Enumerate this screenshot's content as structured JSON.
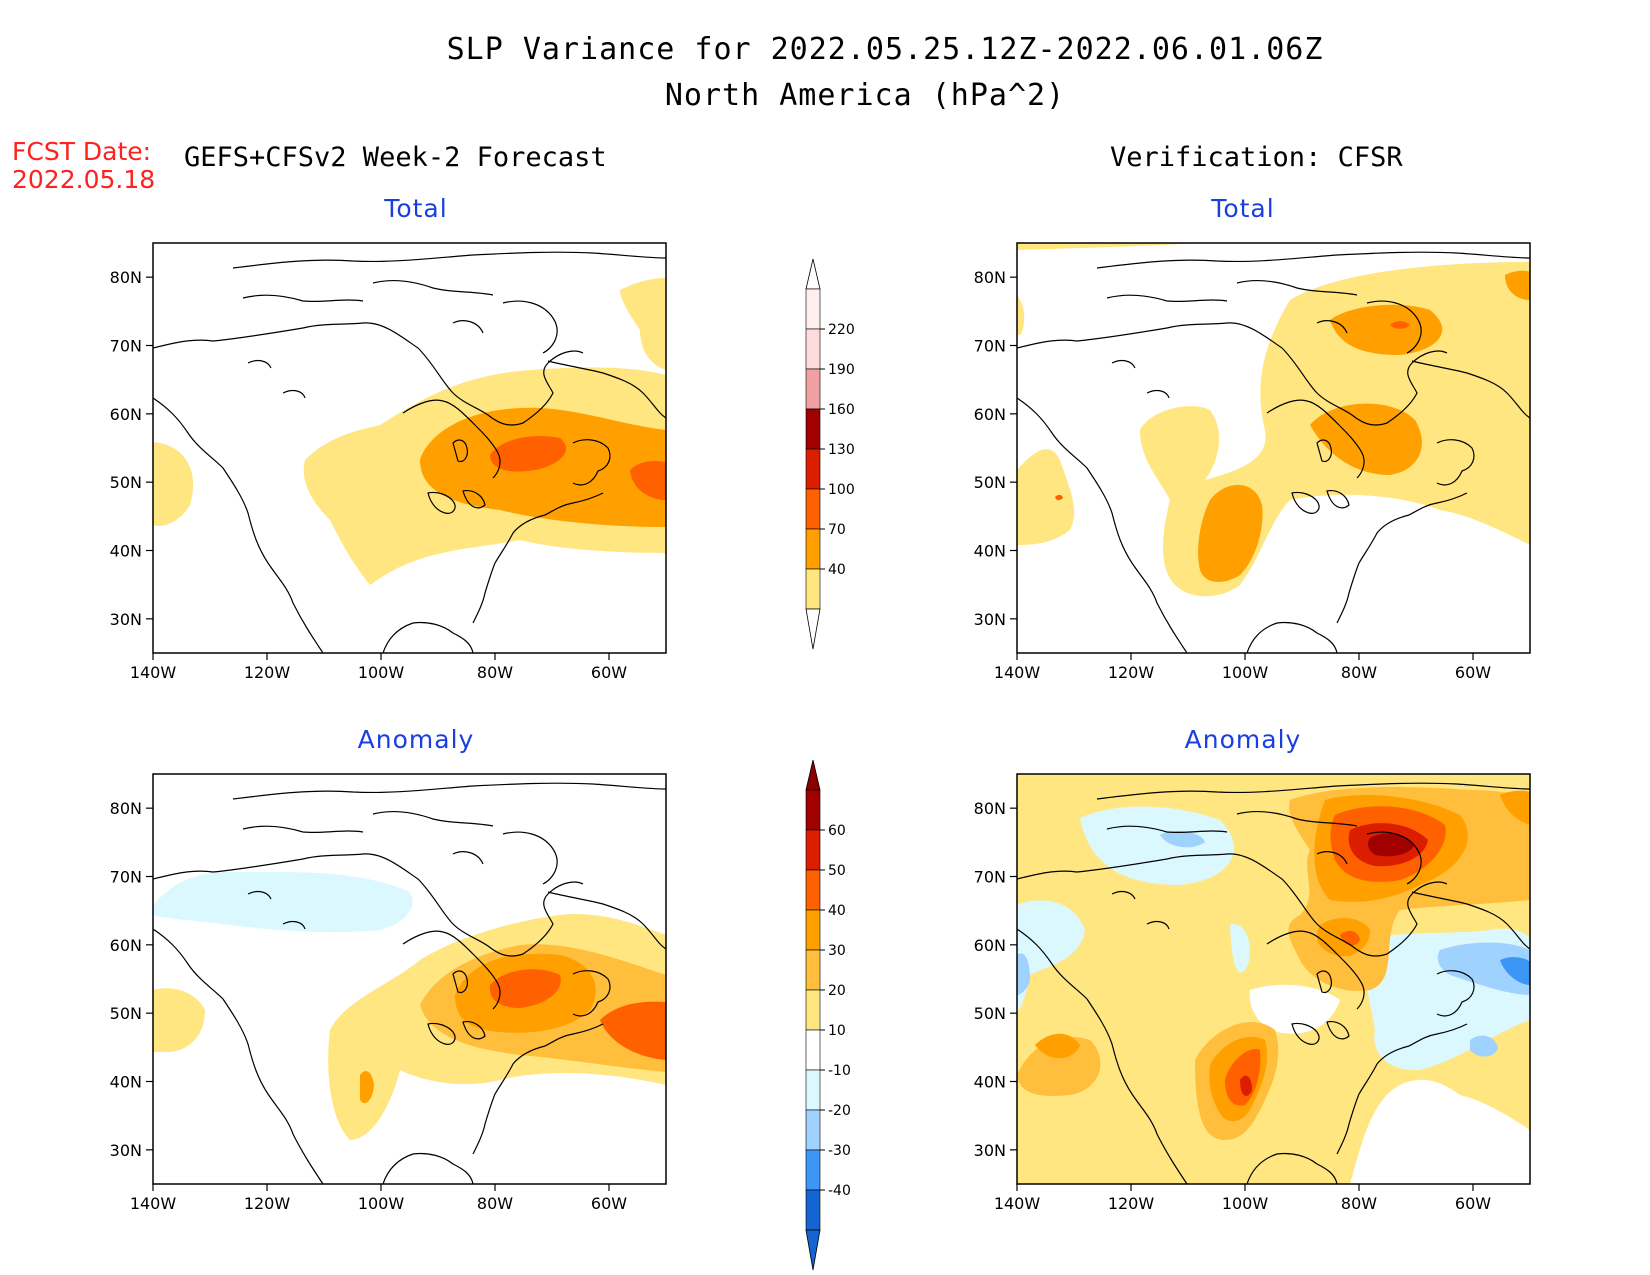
{
  "title_line1": "SLP Variance for 2022.05.25.12Z-2022.06.01.06Z",
  "title_line2": "North America (hPa^2)",
  "fcst_label": "FCST Date:",
  "fcst_date": "2022.05.18",
  "left_header": "GEFS+CFSv2 Week-2 Forecast",
  "right_header": "Verification: CFSR",
  "panel_titles": {
    "top_left": "Total",
    "top_right": "Total",
    "bottom_left": "Anomaly",
    "bottom_right": "Anomaly"
  },
  "axes": {
    "lat_labels": [
      "80N",
      "70N",
      "60N",
      "50N",
      "40N",
      "30N"
    ],
    "lon_labels": [
      "140W",
      "120W",
      "100W",
      "80W",
      "60W"
    ],
    "lat_values": [
      80,
      70,
      60,
      50,
      40,
      30
    ],
    "lon_values": [
      -140,
      -120,
      -100,
      -80,
      -60
    ],
    "lat_range": [
      25,
      85
    ],
    "lon_range": [
      -140,
      -50
    ]
  },
  "total_colorbar": {
    "levels": [
      "220",
      "190",
      "160",
      "130",
      "100",
      "70",
      "40"
    ],
    "colors": [
      "#ffdcdc",
      "#f0a0a0",
      "#a00000",
      "#dc1e00",
      "#ff6000",
      "#ffa000",
      "#ffe680"
    ]
  },
  "anomaly_colorbar": {
    "levels": [
      "60",
      "50",
      "40",
      "30",
      "20",
      "10",
      "-10",
      "-20",
      "-30",
      "-40"
    ],
    "colors": [
      "#a00000",
      "#dc1e00",
      "#ff6000",
      "#ffa000",
      "#ffbe3c",
      "#ffe680",
      "#ffffff",
      "#dcf8ff",
      "#a0d2ff",
      "#3c96f5",
      "#1464d2"
    ]
  }
}
